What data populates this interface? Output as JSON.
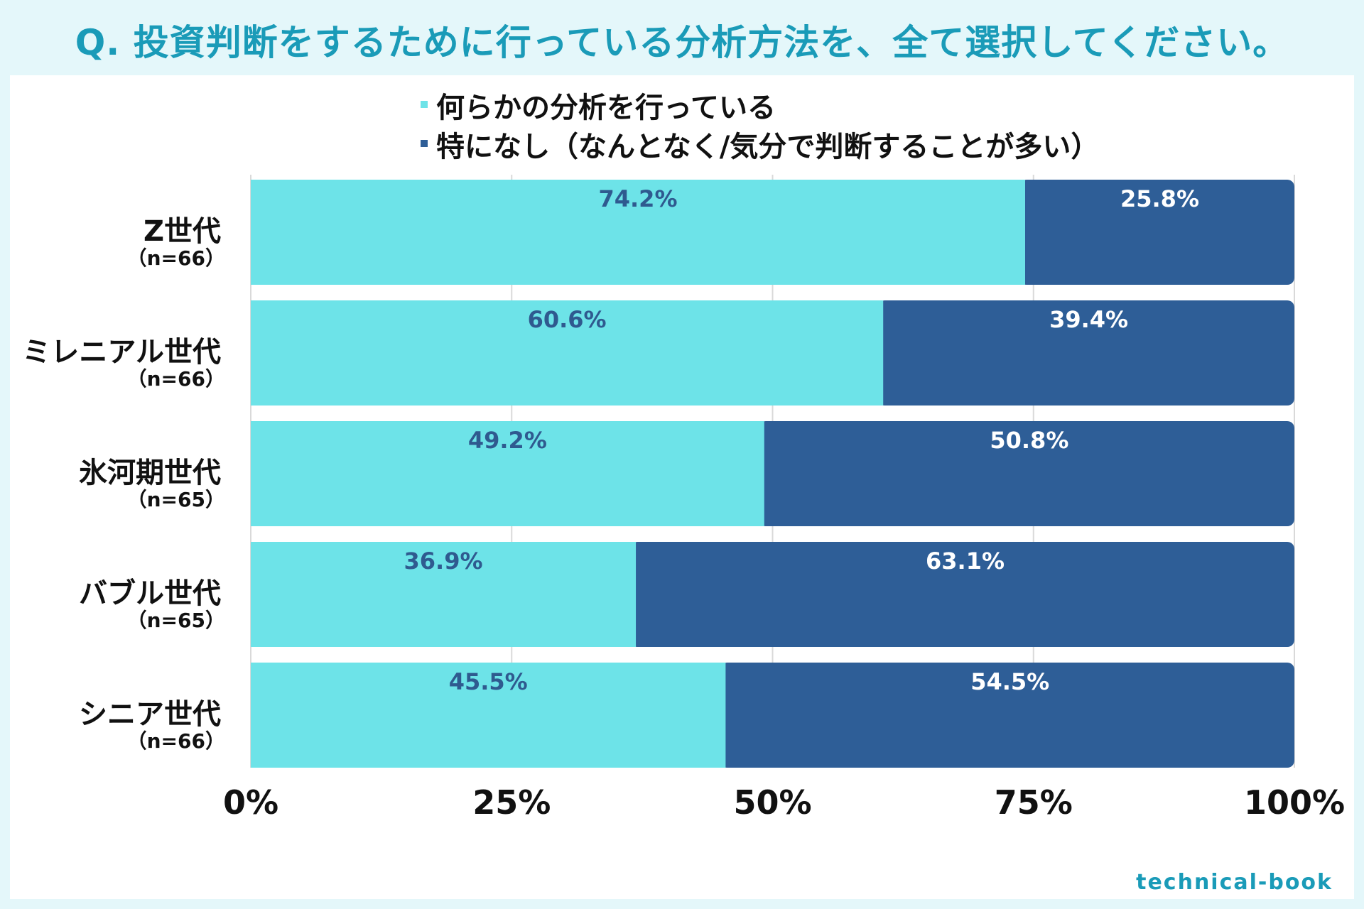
{
  "title": "Q. 投資判断をするために行っている分析方法を、全て選択してください。",
  "brand": "technical-book",
  "colors": {
    "series_a": "#6de3e8",
    "series_b": "#2e5e97",
    "grid": "#d9d9d9",
    "background": "#e4f7fa",
    "title": "#1a9bb8"
  },
  "chart_data": {
    "type": "bar",
    "orientation": "horizontal",
    "stacked": true,
    "categories": [
      "Z世代",
      "ミレニアル世代",
      "氷河期世代",
      "バブル世代",
      "シニア世代"
    ],
    "sample_sizes": [
      "（n=66）",
      "（n=66）",
      "（n=65）",
      "（n=65）",
      "（n=66）"
    ],
    "series": [
      {
        "name": "何らかの分析を行っている",
        "values": [
          74.2,
          60.6,
          49.2,
          36.9,
          45.5
        ],
        "labels": [
          "74.2%",
          "60.6%",
          "49.2%",
          "36.9%",
          "45.5%"
        ]
      },
      {
        "name": "特になし（なんとなく/気分で判断することが多い）",
        "values": [
          25.8,
          39.4,
          50.8,
          63.1,
          54.5
        ],
        "labels": [
          "25.8%",
          "39.4%",
          "50.8%",
          "63.1%",
          "54.5%"
        ]
      }
    ],
    "xlim": [
      0,
      100
    ],
    "xticks": [
      "0%",
      "25%",
      "50%",
      "75%",
      "100%"
    ],
    "grid": true,
    "legend_position": "top"
  }
}
